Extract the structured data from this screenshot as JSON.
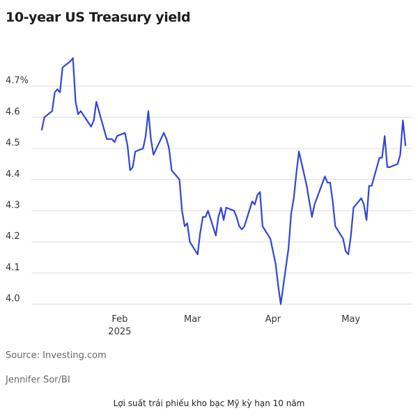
{
  "chart_data": {
    "type": "line",
    "title": "10-year US Treasury yield",
    "ylim": [
      3.97,
      4.82
    ],
    "ytick_labels": [
      "4.7%",
      "4.6",
      "4.5",
      "4.4",
      "4.3",
      "4.2",
      "4.1",
      "4.0"
    ],
    "yticks": [
      4.7,
      4.6,
      4.5,
      4.4,
      4.3,
      4.2,
      4.1,
      4.0
    ],
    "x_axis": {
      "type": "date",
      "start": "2025-01-02",
      "end": "2025-05-22",
      "ticks": [
        {
          "date": "2025-02-01",
          "label": "Feb",
          "sublabel": "2025"
        },
        {
          "date": "2025-03-01",
          "label": "Mar",
          "sublabel": ""
        },
        {
          "date": "2025-04-01",
          "label": "Apr",
          "sublabel": ""
        },
        {
          "date": "2025-05-01",
          "label": "May",
          "sublabel": ""
        }
      ]
    },
    "grid": true,
    "legend": "none",
    "line_color": "#2f45d8",
    "series": [
      {
        "name": "",
        "points": [
          [
            "2025-01-02",
            4.56
          ],
          [
            "2025-01-03",
            4.6
          ],
          [
            "2025-01-06",
            4.62
          ],
          [
            "2025-01-07",
            4.68
          ],
          [
            "2025-01-08",
            4.69
          ],
          [
            "2025-01-09",
            4.68
          ],
          [
            "2025-01-10",
            4.76
          ],
          [
            "2025-01-13",
            4.78
          ],
          [
            "2025-01-14",
            4.79
          ],
          [
            "2025-01-15",
            4.65
          ],
          [
            "2025-01-16",
            4.61
          ],
          [
            "2025-01-17",
            4.62
          ],
          [
            "2025-01-21",
            4.57
          ],
          [
            "2025-01-22",
            4.59
          ],
          [
            "2025-01-23",
            4.65
          ],
          [
            "2025-01-24",
            4.62
          ],
          [
            "2025-01-27",
            4.53
          ],
          [
            "2025-01-28",
            4.53
          ],
          [
            "2025-01-29",
            4.53
          ],
          [
            "2025-01-30",
            4.52
          ],
          [
            "2025-01-31",
            4.54
          ],
          [
            "2025-02-03",
            4.55
          ],
          [
            "2025-02-04",
            4.51
          ],
          [
            "2025-02-05",
            4.43
          ],
          [
            "2025-02-06",
            4.44
          ],
          [
            "2025-02-07",
            4.49
          ],
          [
            "2025-02-10",
            4.5
          ],
          [
            "2025-02-11",
            4.54
          ],
          [
            "2025-02-12",
            4.62
          ],
          [
            "2025-02-13",
            4.53
          ],
          [
            "2025-02-14",
            4.48
          ],
          [
            "2025-02-18",
            4.55
          ],
          [
            "2025-02-19",
            4.53
          ],
          [
            "2025-02-20",
            4.5
          ],
          [
            "2025-02-21",
            4.43
          ],
          [
            "2025-02-24",
            4.4
          ],
          [
            "2025-02-25",
            4.3
          ],
          [
            "2025-02-26",
            4.25
          ],
          [
            "2025-02-27",
            4.26
          ],
          [
            "2025-02-28",
            4.2
          ],
          [
            "2025-03-03",
            4.16
          ],
          [
            "2025-03-04",
            4.23
          ],
          [
            "2025-03-05",
            4.28
          ],
          [
            "2025-03-06",
            4.28
          ],
          [
            "2025-03-07",
            4.3
          ],
          [
            "2025-03-10",
            4.22
          ],
          [
            "2025-03-11",
            4.28
          ],
          [
            "2025-03-12",
            4.31
          ],
          [
            "2025-03-13",
            4.27
          ],
          [
            "2025-03-14",
            4.31
          ],
          [
            "2025-03-17",
            4.3
          ],
          [
            "2025-03-18",
            4.28
          ],
          [
            "2025-03-19",
            4.25
          ],
          [
            "2025-03-20",
            4.24
          ],
          [
            "2025-03-21",
            4.25
          ],
          [
            "2025-03-24",
            4.33
          ],
          [
            "2025-03-25",
            4.32
          ],
          [
            "2025-03-26",
            4.35
          ],
          [
            "2025-03-27",
            4.36
          ],
          [
            "2025-03-28",
            4.25
          ],
          [
            "2025-03-31",
            4.21
          ],
          [
            "2025-04-01",
            4.17
          ],
          [
            "2025-04-02",
            4.13
          ],
          [
            "2025-04-03",
            4.06
          ],
          [
            "2025-04-04",
            4.0
          ],
          [
            "2025-04-07",
            4.18
          ],
          [
            "2025-04-08",
            4.29
          ],
          [
            "2025-04-09",
            4.34
          ],
          [
            "2025-04-10",
            4.42
          ],
          [
            "2025-04-11",
            4.49
          ],
          [
            "2025-04-14",
            4.38
          ],
          [
            "2025-04-15",
            4.33
          ],
          [
            "2025-04-16",
            4.28
          ],
          [
            "2025-04-17",
            4.32
          ],
          [
            "2025-04-21",
            4.41
          ],
          [
            "2025-04-22",
            4.39
          ],
          [
            "2025-04-23",
            4.39
          ],
          [
            "2025-04-24",
            4.33
          ],
          [
            "2025-04-25",
            4.25
          ],
          [
            "2025-04-28",
            4.21
          ],
          [
            "2025-04-29",
            4.17
          ],
          [
            "2025-04-30",
            4.16
          ],
          [
            "2025-05-01",
            4.22
          ],
          [
            "2025-05-02",
            4.31
          ],
          [
            "2025-05-05",
            4.34
          ],
          [
            "2025-05-06",
            4.32
          ],
          [
            "2025-05-07",
            4.27
          ],
          [
            "2025-05-08",
            4.38
          ],
          [
            "2025-05-09",
            4.38
          ],
          [
            "2025-05-12",
            4.47
          ],
          [
            "2025-05-13",
            4.47
          ],
          [
            "2025-05-14",
            4.54
          ],
          [
            "2025-05-15",
            4.44
          ],
          [
            "2025-05-16",
            4.44
          ],
          [
            "2025-05-19",
            4.45
          ],
          [
            "2025-05-20",
            4.48
          ],
          [
            "2025-05-21",
            4.59
          ],
          [
            "2025-05-22",
            4.51
          ]
        ]
      }
    ]
  },
  "footer": {
    "source": "Source: Investing.com",
    "author": "Jennifer Sor/BI"
  },
  "caption": "Lợi suất trái phiếu kho bạc Mỹ kỳ hạn 10 năm"
}
